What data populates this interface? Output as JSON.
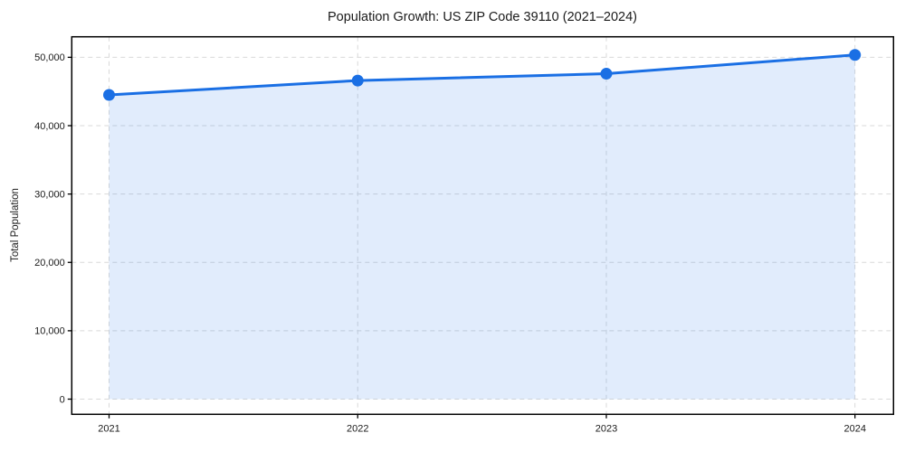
{
  "chart_data": {
    "type": "area",
    "title": "Population Growth: US ZIP Code 39110 (2021–2024)",
    "xlabel": "",
    "ylabel": "Total Population",
    "x": [
      2021,
      2022,
      2023,
      2024
    ],
    "series": [
      {
        "name": "Total Population",
        "values": [
          44500,
          46600,
          47600,
          50350
        ]
      }
    ],
    "xticks": [
      2021,
      2022,
      2023,
      2024
    ],
    "xtick_labels": [
      "2021",
      "2022",
      "2023",
      "2024"
    ],
    "yticks": [
      0,
      10000,
      20000,
      30000,
      40000,
      50000
    ],
    "ytick_labels": [
      "0",
      "10,000",
      "20,000",
      "30,000",
      "40,000",
      "50,000"
    ],
    "xlim": [
      2020.85,
      2024.155
    ],
    "ylim": [
      -2220,
      53000
    ],
    "grid": true,
    "grid_style": "dashed",
    "legend": "none",
    "line_width": 3,
    "marker_radius": 6.5,
    "colors": {
      "line": "#1a6fe4",
      "marker": "#1a6fe4",
      "fill": "rgba(26, 111, 228, 0.13)",
      "grid": "#d9d9d9",
      "spine": "#000000",
      "text": "#1a1a1a",
      "background": "#ffffff"
    }
  }
}
